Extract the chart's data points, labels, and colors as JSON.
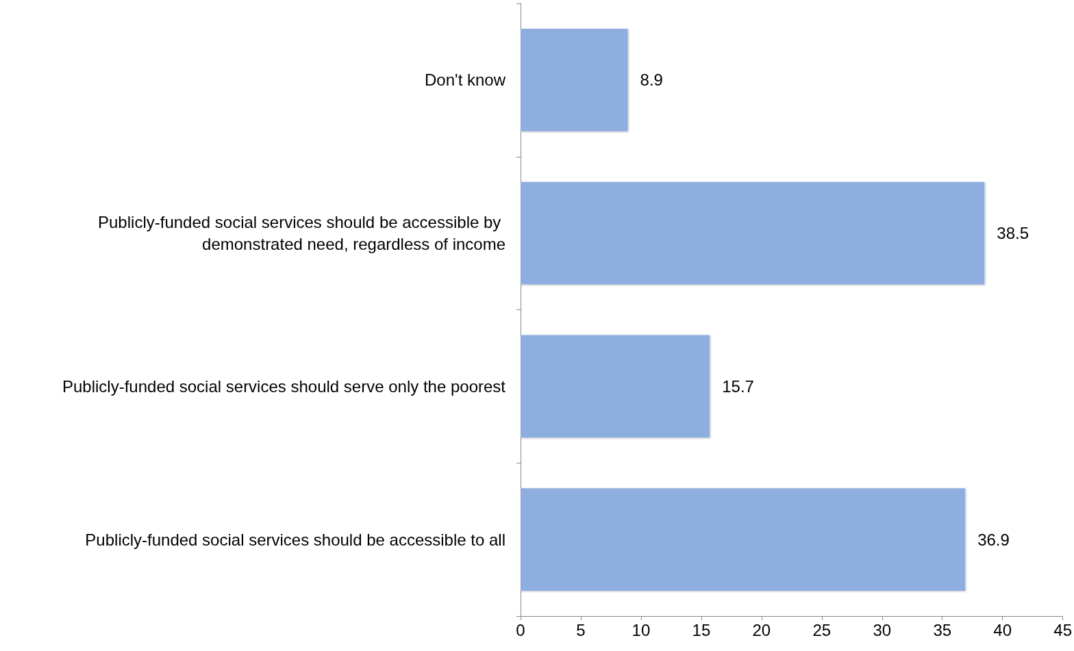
{
  "chart_data": {
    "type": "bar",
    "orientation": "horizontal",
    "categories": [
      "Don't know",
      "Publicly-funded social services should be accessible by demonstrated need, regardless of income",
      "Publicly-funded social services should serve only the poorest",
      "Publicly-funded social services should be accessible to all"
    ],
    "values": [
      8.9,
      38.5,
      15.7,
      36.9
    ],
    "color": "#8eaee0",
    "xlim": [
      0,
      45
    ],
    "xticks": [
      0,
      5,
      10,
      15,
      20,
      25,
      30,
      35,
      40,
      45
    ],
    "grid": false,
    "data_labels": true
  }
}
